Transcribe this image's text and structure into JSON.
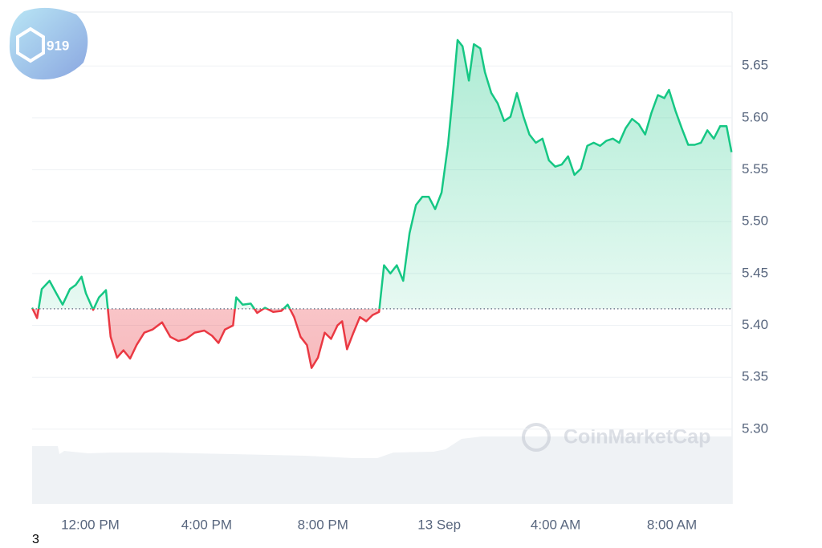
{
  "chart_data": {
    "type": "baseline-line",
    "x": [
      10.0,
      10.17,
      10.33,
      10.6,
      10.83,
      11.05,
      11.3,
      11.5,
      11.7,
      11.85,
      12.1,
      12.3,
      12.54,
      12.7,
      12.92,
      13.14,
      13.37,
      13.59,
      13.86,
      14.14,
      14.47,
      14.75,
      15.03,
      15.3,
      15.59,
      15.92,
      16.19,
      16.41,
      16.63,
      16.91,
      17.02,
      17.24,
      17.52,
      17.74,
      18.01,
      18.29,
      18.57,
      18.79,
      19.01,
      19.23,
      19.45,
      19.61,
      19.83,
      20.06,
      20.28,
      20.5,
      20.66,
      20.83,
      21.05,
      21.27,
      21.49,
      21.71,
      21.93,
      22.1,
      22.32,
      22.54,
      22.76,
      22.98,
      23.2,
      23.42,
      23.64,
      23.86,
      24.08,
      24.3,
      24.46,
      24.63,
      24.8,
      25.02,
      25.19,
      25.41,
      25.57,
      25.79,
      26.01,
      26.23,
      26.45,
      26.67,
      26.9,
      27.1,
      27.32,
      27.55,
      27.77,
      27.99,
      28.21,
      28.43,
      28.65,
      28.87,
      29.09,
      29.31,
      29.53,
      29.75,
      29.97,
      30.19,
      30.41,
      30.63,
      30.86,
      31.08,
      31.3,
      31.52,
      31.74,
      31.9,
      32.12,
      32.34,
      32.56,
      32.78,
      33.0,
      33.22,
      33.44,
      33.66,
      33.88,
      34.05
    ],
    "values": [
      5.417,
      5.407,
      5.435,
      5.443,
      5.431,
      5.42,
      5.435,
      5.439,
      5.447,
      5.431,
      5.415,
      5.427,
      5.434,
      5.389,
      5.369,
      5.376,
      5.368,
      5.381,
      5.393,
      5.396,
      5.403,
      5.389,
      5.385,
      5.387,
      5.393,
      5.395,
      5.39,
      5.383,
      5.396,
      5.4,
      5.427,
      5.42,
      5.421,
      5.412,
      5.417,
      5.413,
      5.414,
      5.42,
      5.408,
      5.389,
      5.381,
      5.359,
      5.369,
      5.393,
      5.387,
      5.4,
      5.404,
      5.377,
      5.393,
      5.408,
      5.404,
      5.41,
      5.413,
      5.458,
      5.45,
      5.458,
      5.443,
      5.489,
      5.516,
      5.524,
      5.524,
      5.512,
      5.528,
      5.574,
      5.621,
      5.675,
      5.669,
      5.636,
      5.671,
      5.667,
      5.644,
      5.624,
      5.614,
      5.597,
      5.601,
      5.624,
      5.601,
      5.584,
      5.576,
      5.58,
      5.559,
      5.553,
      5.555,
      5.563,
      5.545,
      5.551,
      5.573,
      5.576,
      5.573,
      5.578,
      5.58,
      5.576,
      5.59,
      5.599,
      5.594,
      5.584,
      5.605,
      5.622,
      5.619,
      5.627,
      5.607,
      5.59,
      5.574,
      5.574,
      5.576,
      5.588,
      5.58,
      5.592,
      5.592,
      5.567
    ],
    "baseline": 5.416,
    "up_color": "#16c784",
    "down_color": "#ea3943",
    "xlim": [
      10,
      34.07
    ],
    "ylim": [
      5.228,
      5.702
    ],
    "xticks": [
      {
        "value": 12,
        "label": "12:00 PM"
      },
      {
        "value": 16,
        "label": "4:00 PM"
      },
      {
        "value": 20,
        "label": "8:00 PM"
      },
      {
        "value": 24,
        "label": "13 Sep"
      },
      {
        "value": 28,
        "label": "4:00 AM"
      },
      {
        "value": 32,
        "label": "8:00 AM"
      }
    ],
    "yticks": [
      {
        "value": 5.3,
        "label": "5.30"
      },
      {
        "value": 5.35,
        "label": "5.35"
      },
      {
        "value": 5.4,
        "label": "5.40"
      },
      {
        "value": 5.45,
        "label": "5.45"
      },
      {
        "value": 5.5,
        "label": "5.50"
      },
      {
        "value": 5.55,
        "label": "5.55"
      },
      {
        "value": 5.6,
        "label": "5.60"
      },
      {
        "value": 5.65,
        "label": "5.65"
      }
    ],
    "grid": true,
    "watermark": "CoinMarketCap",
    "logo_text": "919",
    "footnote": "3"
  }
}
